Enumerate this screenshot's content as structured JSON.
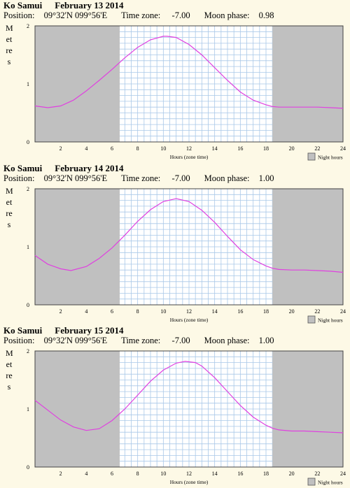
{
  "legend_label": "Night hours",
  "xlabel": "Hours (zone time)",
  "ylabel": "Metres",
  "colors": {
    "night": "#c0c0c0",
    "grid": "#a9c8e8",
    "curve": "#e040e0",
    "background": "#fdf9e6",
    "day": "#ffffff"
  },
  "panels": [
    {
      "place": "Ko Samui",
      "date": "February 13 2014",
      "position_label": "Position:",
      "position": "09°32'N 099°56'E",
      "timezone_label": "Time zone:",
      "timezone": "-7.00",
      "moon_label": "Moon phase:",
      "moon": "0.98"
    },
    {
      "place": "Ko Samui",
      "date": "February 14 2014",
      "position_label": "Position:",
      "position": "09°32'N 099°56'E",
      "timezone_label": "Time zone:",
      "timezone": "-7.00",
      "moon_label": "Moon phase:",
      "moon": "1.00"
    },
    {
      "place": "Ko Samui",
      "date": "February 15 2014",
      "position_label": "Position:",
      "position": "09°32'N 099°56'E",
      "timezone_label": "Time zone:",
      "timezone": "-7.00",
      "moon_label": "Moon phase:",
      "moon": "1.00"
    }
  ],
  "chart_data": [
    {
      "type": "line",
      "title": "Ko Samui February 13 2014",
      "xlabel": "Hours (zone time)",
      "ylabel": "Metres",
      "xlim": [
        0,
        24
      ],
      "ylim": [
        0,
        2
      ],
      "xticks": [
        2,
        4,
        6,
        8,
        10,
        12,
        14,
        16,
        18,
        20,
        22,
        24
      ],
      "yticks": [
        0,
        1,
        2
      ],
      "night_hours": [
        [
          0,
          6.6
        ],
        [
          18.5,
          24
        ]
      ],
      "x": [
        0,
        1,
        2,
        3,
        4,
        5,
        6,
        7,
        8,
        9,
        10,
        10.3,
        11,
        12,
        13,
        14,
        15,
        16,
        17,
        18,
        18.5,
        19,
        20,
        21,
        22,
        23,
        24
      ],
      "y": [
        0.62,
        0.59,
        0.62,
        0.72,
        0.88,
        1.06,
        1.25,
        1.45,
        1.63,
        1.76,
        1.82,
        1.82,
        1.8,
        1.68,
        1.5,
        1.28,
        1.06,
        0.86,
        0.72,
        0.64,
        0.61,
        0.6,
        0.6,
        0.6,
        0.6,
        0.59,
        0.58
      ],
      "legend": "Night hours"
    },
    {
      "type": "line",
      "title": "Ko Samui February 14 2014",
      "xlabel": "Hours (zone time)",
      "ylabel": "Metres",
      "xlim": [
        0,
        24
      ],
      "ylim": [
        0,
        2
      ],
      "xticks": [
        2,
        4,
        6,
        8,
        10,
        12,
        14,
        16,
        18,
        20,
        22,
        24
      ],
      "yticks": [
        0,
        1,
        2
      ],
      "night_hours": [
        [
          0,
          6.6
        ],
        [
          18.5,
          24
        ]
      ],
      "x": [
        0,
        1,
        2,
        2.8,
        4,
        5,
        6,
        7,
        8,
        9,
        10,
        11,
        12,
        13,
        14,
        15,
        16,
        17,
        18,
        18.5,
        19,
        20,
        21,
        22,
        23,
        24
      ],
      "y": [
        0.85,
        0.7,
        0.62,
        0.59,
        0.66,
        0.8,
        0.98,
        1.2,
        1.44,
        1.64,
        1.78,
        1.83,
        1.78,
        1.63,
        1.42,
        1.18,
        0.95,
        0.78,
        0.67,
        0.63,
        0.61,
        0.6,
        0.6,
        0.59,
        0.58,
        0.56
      ],
      "legend": "Night hours"
    },
    {
      "type": "line",
      "title": "Ko Samui February 15 2014",
      "xlabel": "Hours (zone time)",
      "ylabel": "Metres",
      "xlim": [
        0,
        24
      ],
      "ylim": [
        0,
        2
      ],
      "xticks": [
        2,
        4,
        6,
        8,
        10,
        12,
        14,
        16,
        18,
        20,
        22,
        24
      ],
      "yticks": [
        0,
        1,
        2
      ],
      "night_hours": [
        [
          0,
          6.6
        ],
        [
          18.5,
          24
        ]
      ],
      "x": [
        0,
        1,
        2,
        3,
        4,
        5,
        6,
        7,
        8,
        9,
        10,
        11,
        11.7,
        12.5,
        13,
        14,
        15,
        16,
        17,
        18,
        18.5,
        19,
        20,
        21,
        22,
        23,
        24
      ],
      "y": [
        1.15,
        0.98,
        0.81,
        0.69,
        0.63,
        0.66,
        0.8,
        1.0,
        1.24,
        1.48,
        1.67,
        1.79,
        1.82,
        1.8,
        1.74,
        1.54,
        1.3,
        1.06,
        0.86,
        0.72,
        0.67,
        0.64,
        0.62,
        0.62,
        0.61,
        0.6,
        0.59
      ],
      "legend": "Night hours"
    }
  ]
}
